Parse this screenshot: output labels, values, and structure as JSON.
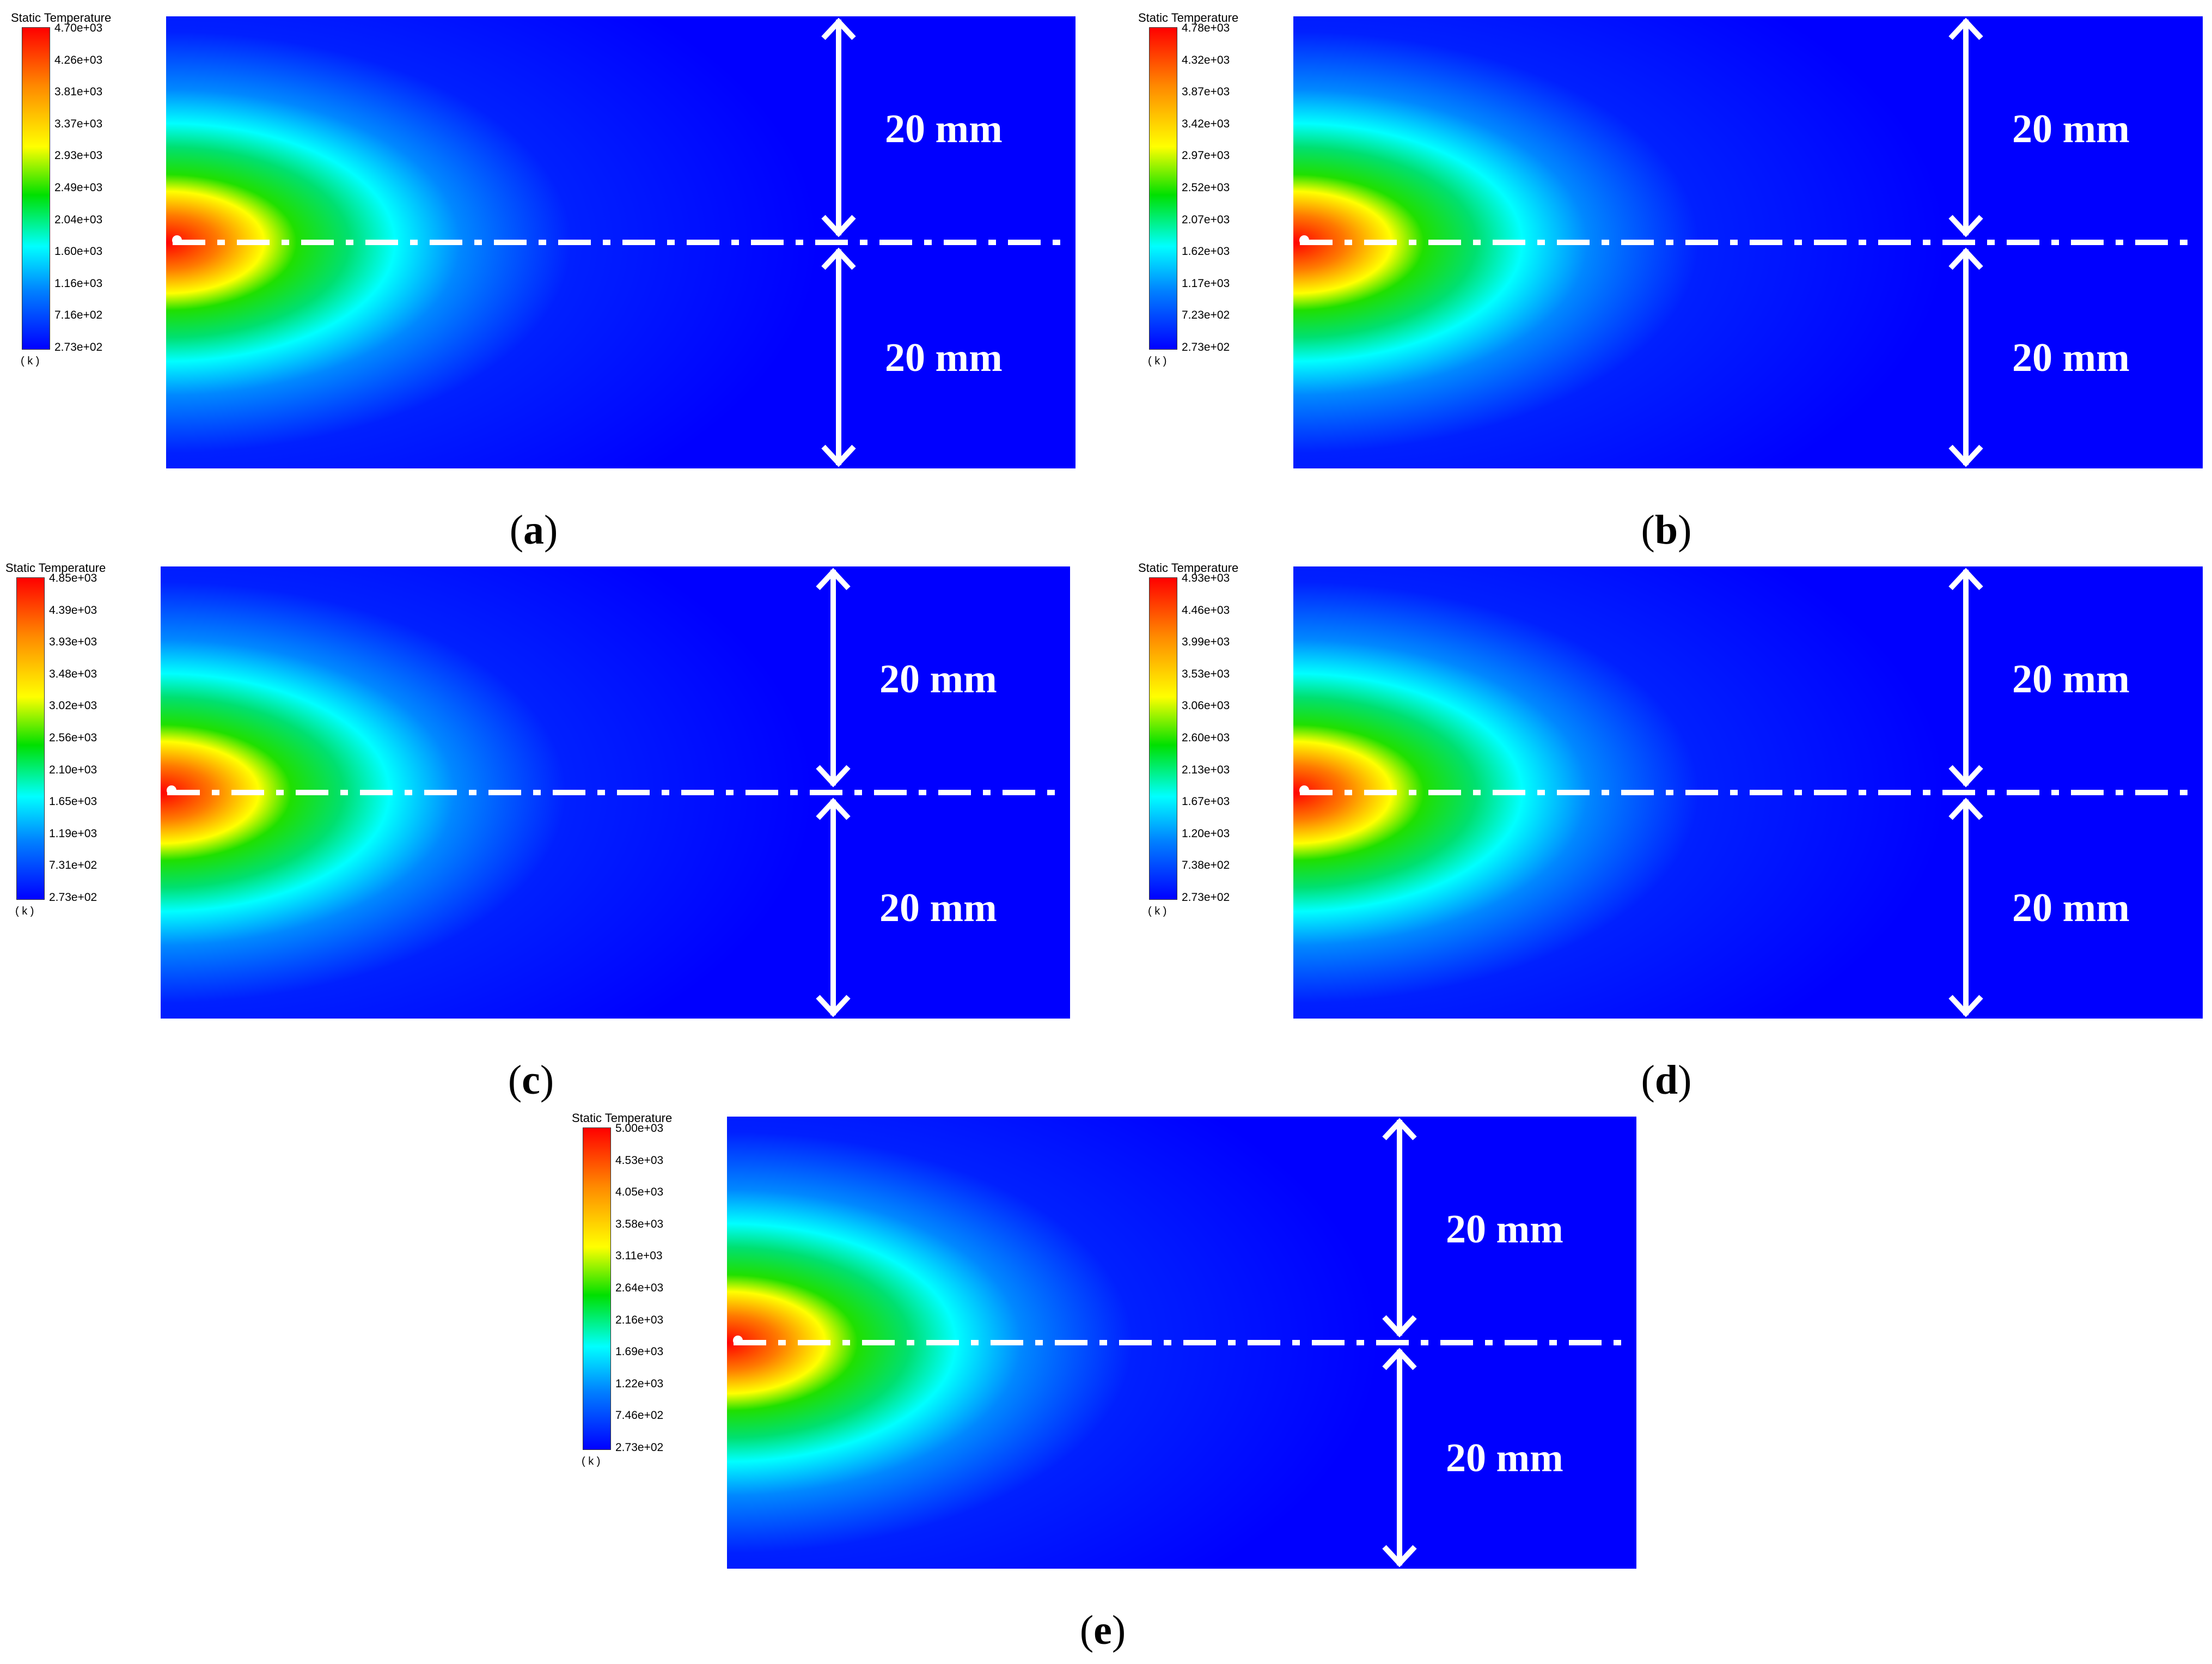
{
  "legend": {
    "title": "Static Temperature",
    "units": "( k )"
  },
  "dimension_label": "20 mm",
  "panels": [
    {
      "caption_letter": "a",
      "ticks": [
        "4.70e+03",
        "4.26e+03",
        "3.81e+03",
        "3.37e+03",
        "2.93e+03",
        "2.49e+03",
        "2.04e+03",
        "1.60e+03",
        "1.16e+03",
        "7.16e+02",
        "2.73e+02"
      ]
    },
    {
      "caption_letter": "b",
      "ticks": [
        "4.78e+03",
        "4.32e+03",
        "3.87e+03",
        "3.42e+03",
        "2.97e+03",
        "2.52e+03",
        "2.07e+03",
        "1.62e+03",
        "1.17e+03",
        "7.23e+02",
        "2.73e+02"
      ]
    },
    {
      "caption_letter": "c",
      "ticks": [
        "4.85e+03",
        "4.39e+03",
        "3.93e+03",
        "3.48e+03",
        "3.02e+03",
        "2.56e+03",
        "2.10e+03",
        "1.65e+03",
        "1.19e+03",
        "7.31e+02",
        "2.73e+02"
      ]
    },
    {
      "caption_letter": "d",
      "ticks": [
        "4.93e+03",
        "4.46e+03",
        "3.99e+03",
        "3.53e+03",
        "3.06e+03",
        "2.60e+03",
        "2.13e+03",
        "1.67e+03",
        "1.20e+03",
        "7.38e+02",
        "2.73e+02"
      ]
    },
    {
      "caption_letter": "e",
      "ticks": [
        "5.00e+03",
        "4.53e+03",
        "4.05e+03",
        "3.58e+03",
        "3.11e+03",
        "2.64e+03",
        "2.16e+03",
        "1.69e+03",
        "1.22e+03",
        "7.46e+02",
        "2.73e+02"
      ]
    }
  ],
  "colors": {
    "hot": "#ff0000",
    "cold": "#0000ff",
    "annotation": "#ffffff"
  }
}
